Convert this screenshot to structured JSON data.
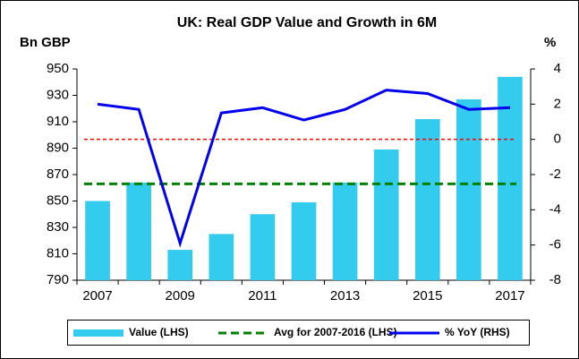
{
  "chart_data": {
    "type": "bar",
    "title": "UK: Real GDP Value and Growth in 6M",
    "y_label": "Bn GBP",
    "y2_label": "%",
    "categories": [
      "2007",
      null,
      "2009",
      null,
      "2011",
      null,
      "2013",
      null,
      "2015",
      null,
      "2017"
    ],
    "series": [
      {
        "name": "Value (LHS)",
        "color": "#33ccee",
        "values": [
          850,
          864,
          813,
          825,
          840,
          849,
          864,
          889,
          912,
          927,
          944
        ]
      },
      {
        "name": "Avg for 2007-2016 (LHS)",
        "color": "#008000",
        "value": 863,
        "style": "dashed"
      },
      {
        "name": "% YoY (RHS)",
        "color": "#0000ee",
        "axis": "y2",
        "values": [
          2.0,
          1.7,
          -5.9,
          1.5,
          1.8,
          1.1,
          1.7,
          2.8,
          2.6,
          1.7,
          1.8
        ]
      }
    ],
    "ylim": [
      790,
      950
    ],
    "yticks": [
      790,
      810,
      830,
      850,
      870,
      890,
      910,
      930,
      950
    ],
    "y2lim": [
      -8,
      4
    ],
    "y2ticks": [
      -8,
      -6,
      -4,
      -2,
      0,
      2,
      4
    ],
    "y2_zero_line": {
      "color": "#ff0000",
      "style": "dashed"
    },
    "legend": "bottom"
  }
}
